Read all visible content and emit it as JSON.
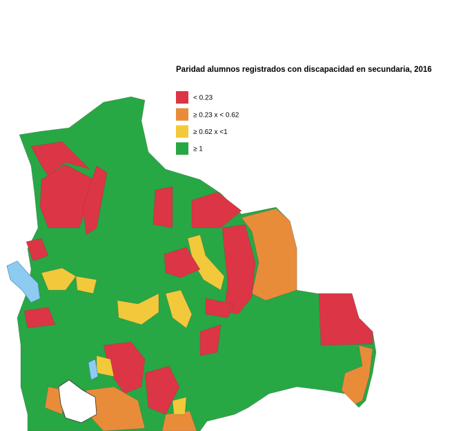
{
  "title": "Paridad alumnos registrados con discapacidad en secundaria, 2016",
  "legend": [
    {
      "label": "< 0.23",
      "color": "#dc3545"
    },
    {
      "label": "≥ 0.23 x < 0.62",
      "color": "#e98c3a"
    },
    {
      "label": "≥ 0.62 x <1",
      "color": "#f2c93b"
    },
    {
      "label": "≥ 1",
      "color": "#28a745"
    }
  ]
}
